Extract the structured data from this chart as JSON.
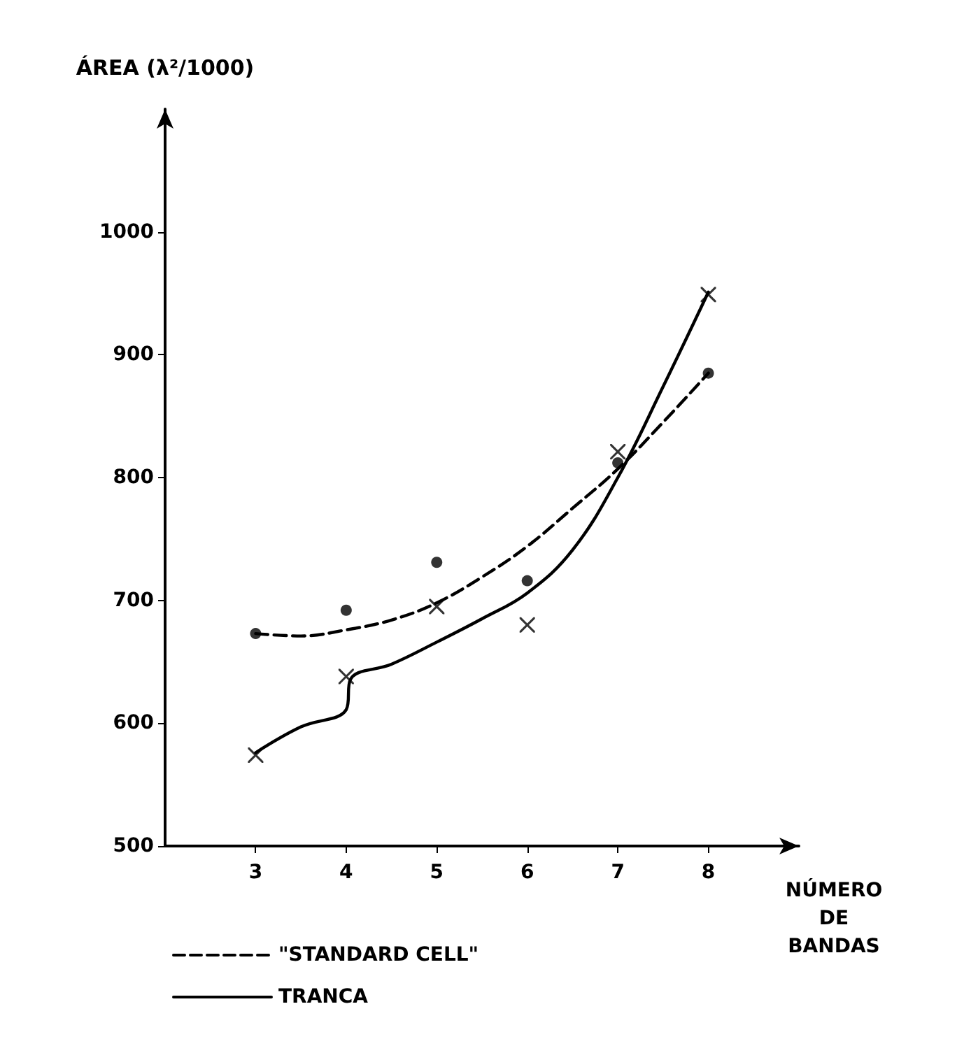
{
  "chart_data": {
    "type": "line",
    "xlabel": "NÚMERO DE BANDAS",
    "ylabel": "ÁREA (λ²/1000)",
    "xlim": [
      2,
      9
    ],
    "xticks": [
      3,
      4,
      5,
      6,
      7,
      8
    ],
    "ylim": [
      500,
      1100
    ],
    "yticks": [
      500,
      600,
      700,
      800,
      900,
      1000
    ],
    "grid": false,
    "legend": "bottom left",
    "series": [
      {
        "name": "\"STANDARD CELL\"",
        "color": "#000000",
        "line_style": "dashed",
        "marker": "none",
        "x": [
          3,
          3.5,
          4,
          4.5,
          5,
          5.5,
          6,
          6.5,
          7,
          7.5,
          8
        ],
        "values": [
          673,
          671,
          676,
          684,
          698,
          719,
          744,
          775,
          807,
          845,
          885
        ]
      },
      {
        "name": "TRANCA",
        "color": "#000000",
        "line_style": "solid",
        "marker": "none",
        "x": [
          3,
          3.5,
          4,
          4.05,
          4.5,
          5,
          5.5,
          6,
          6.5,
          7,
          7.5,
          8
        ],
        "values": [
          576,
          597,
          611,
          636,
          648,
          666,
          685,
          706,
          741,
          800,
          874,
          951
        ]
      },
      {
        "type": "scatter",
        "color": "#000000",
        "marker": "circle",
        "x": [
          3,
          4,
          5,
          6,
          7,
          8
        ],
        "values": [
          673,
          692,
          731,
          716,
          812,
          885
        ]
      },
      {
        "type": "scatter",
        "color": "#000000",
        "marker": "cross",
        "x": [
          3,
          4,
          5,
          6,
          7,
          8
        ],
        "values": [
          574,
          638,
          695,
          680,
          821,
          949
        ]
      }
    ]
  }
}
